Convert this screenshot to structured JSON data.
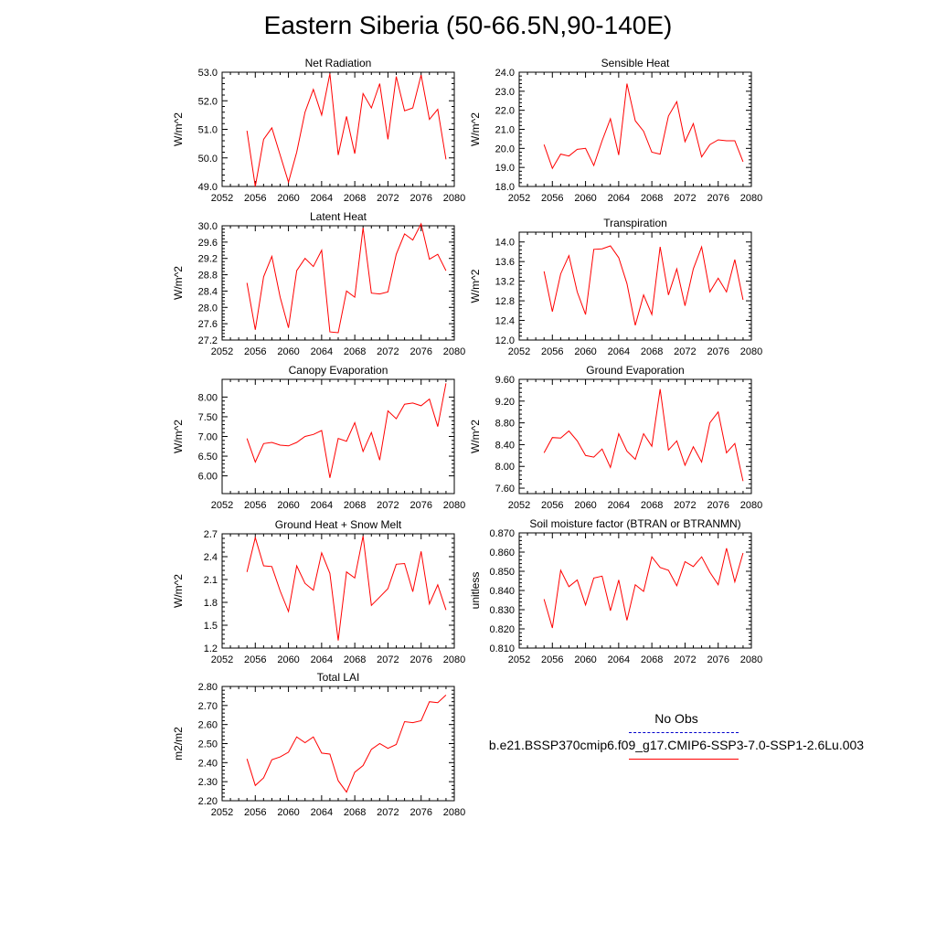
{
  "title": "Eastern Siberia (50-66.5N,90-140E)",
  "chart_data": [
    {
      "type": "line",
      "title": "Net Radiation",
      "ylabel": "W/m^2",
      "xlim": [
        2052,
        2080
      ],
      "ylim": [
        49.0,
        53.0
      ],
      "xticks": [
        "2052",
        "2056",
        "2060",
        "2064",
        "2068",
        "2072",
        "2076",
        "2080"
      ],
      "yticks": [
        "49.0",
        "50.0",
        "51.0",
        "52.0",
        "53.0"
      ],
      "color": "#ff0000",
      "x": [
        2055,
        2056,
        2057,
        2058,
        2059,
        2060,
        2061,
        2062,
        2063,
        2064,
        2065,
        2066,
        2067,
        2068,
        2069,
        2070,
        2071,
        2072,
        2073,
        2074,
        2075,
        2076,
        2077,
        2078,
        2079
      ],
      "y": [
        50.95,
        49.0,
        50.65,
        51.05,
        50.1,
        49.15,
        50.2,
        51.6,
        52.4,
        51.5,
        52.95,
        50.1,
        51.45,
        50.15,
        52.25,
        51.75,
        52.6,
        50.65,
        52.85,
        51.65,
        51.75,
        52.9,
        51.35,
        51.7,
        49.95
      ]
    },
    {
      "type": "line",
      "title": "Sensible Heat",
      "ylabel": "W/m^2",
      "xlim": [
        2052,
        2080
      ],
      "ylim": [
        18.0,
        24.0
      ],
      "xticks": [
        "2052",
        "2056",
        "2060",
        "2064",
        "2068",
        "2072",
        "2076",
        "2080"
      ],
      "yticks": [
        "18.0",
        "19.0",
        "20.0",
        "21.0",
        "22.0",
        "23.0",
        "24.0"
      ],
      "color": "#ff0000",
      "x": [
        2055,
        2056,
        2057,
        2058,
        2059,
        2060,
        2061,
        2062,
        2063,
        2064,
        2065,
        2066,
        2067,
        2068,
        2069,
        2070,
        2071,
        2072,
        2073,
        2074,
        2075,
        2076,
        2077,
        2078,
        2079
      ],
      "y": [
        20.2,
        18.95,
        19.7,
        19.6,
        19.95,
        20.0,
        19.1,
        20.4,
        21.55,
        19.65,
        23.4,
        21.45,
        20.9,
        19.8,
        19.7,
        21.7,
        22.45,
        20.35,
        21.3,
        19.55,
        20.2,
        20.45,
        20.4,
        20.4,
        19.3
      ]
    },
    {
      "type": "line",
      "title": "Latent Heat",
      "ylabel": "W/m^2",
      "xlim": [
        2052,
        2080
      ],
      "ylim": [
        27.2,
        30.0
      ],
      "xticks": [
        "2052",
        "2056",
        "2060",
        "2064",
        "2068",
        "2072",
        "2076",
        "2080"
      ],
      "yticks": [
        "27.2",
        "27.6",
        "28.0",
        "28.4",
        "28.8",
        "29.2",
        "29.6",
        "30.0"
      ],
      "color": "#ff0000",
      "x": [
        2055,
        2056,
        2057,
        2058,
        2059,
        2060,
        2061,
        2062,
        2063,
        2064,
        2065,
        2066,
        2067,
        2068,
        2069,
        2070,
        2071,
        2072,
        2073,
        2074,
        2075,
        2076,
        2077,
        2078,
        2079
      ],
      "y": [
        28.6,
        27.45,
        28.75,
        29.25,
        28.25,
        27.5,
        28.9,
        29.2,
        29.0,
        29.4,
        27.4,
        27.38,
        28.4,
        28.25,
        29.95,
        28.35,
        28.33,
        28.38,
        29.3,
        29.8,
        29.65,
        30.05,
        29.18,
        29.3,
        28.9
      ]
    },
    {
      "type": "line",
      "title": "Transpiration",
      "ylabel": "W/m^2",
      "xlim": [
        2052,
        2080
      ],
      "ylim": [
        12.0,
        14.2
      ],
      "xticks": [
        "2052",
        "2056",
        "2060",
        "2064",
        "2068",
        "2072",
        "2076",
        "2080"
      ],
      "yticks": [
        "12.0",
        "12.4",
        "12.8",
        "13.2",
        "13.6",
        "14.0"
      ],
      "color": "#ff0000",
      "x": [
        2055,
        2056,
        2057,
        2058,
        2059,
        2060,
        2061,
        2062,
        2063,
        2064,
        2065,
        2066,
        2067,
        2068,
        2069,
        2070,
        2071,
        2072,
        2073,
        2074,
        2075,
        2076,
        2077,
        2078,
        2079
      ],
      "y": [
        13.4,
        12.58,
        13.35,
        13.72,
        12.98,
        12.52,
        13.85,
        13.86,
        13.92,
        13.68,
        13.15,
        12.3,
        12.92,
        12.52,
        13.9,
        12.92,
        13.45,
        12.7,
        13.45,
        13.9,
        12.98,
        13.26,
        12.98,
        13.64,
        12.82
      ]
    },
    {
      "type": "line",
      "title": "Canopy Evaporation",
      "ylabel": "W/m^2",
      "xlim": [
        2052,
        2080
      ],
      "ylim": [
        5.55,
        8.45
      ],
      "xticks": [
        "2052",
        "2056",
        "2060",
        "2064",
        "2068",
        "2072",
        "2076",
        "2080"
      ],
      "yticks": [
        "6.00",
        "6.50",
        "7.00",
        "7.50",
        "8.00"
      ],
      "color": "#ff0000",
      "x": [
        2055,
        2056,
        2057,
        2058,
        2059,
        2060,
        2061,
        2062,
        2063,
        2064,
        2065,
        2066,
        2067,
        2068,
        2069,
        2070,
        2071,
        2072,
        2073,
        2074,
        2075,
        2076,
        2077,
        2078,
        2079
      ],
      "y": [
        6.95,
        6.35,
        6.82,
        6.85,
        6.78,
        6.76,
        6.85,
        7.0,
        7.05,
        7.15,
        5.95,
        6.95,
        6.88,
        7.35,
        6.62,
        7.1,
        6.4,
        7.65,
        7.45,
        7.82,
        7.85,
        7.78,
        7.95,
        7.25,
        8.35
      ]
    },
    {
      "type": "line",
      "title": "Ground Evaporation",
      "ylabel": "W/m^2",
      "xlim": [
        2052,
        2080
      ],
      "ylim": [
        7.5,
        9.6
      ],
      "xticks": [
        "2052",
        "2056",
        "2060",
        "2064",
        "2068",
        "2072",
        "2076",
        "2080"
      ],
      "yticks": [
        "7.60",
        "8.00",
        "8.40",
        "8.80",
        "9.20",
        "9.60"
      ],
      "color": "#ff0000",
      "x": [
        2055,
        2056,
        2057,
        2058,
        2059,
        2060,
        2061,
        2062,
        2063,
        2064,
        2065,
        2066,
        2067,
        2068,
        2069,
        2070,
        2071,
        2072,
        2073,
        2074,
        2075,
        2076,
        2077,
        2078,
        2079
      ],
      "y": [
        8.25,
        8.53,
        8.52,
        8.65,
        8.47,
        8.2,
        8.17,
        8.32,
        7.98,
        8.6,
        8.28,
        8.13,
        8.6,
        8.37,
        9.42,
        8.3,
        8.47,
        8.02,
        8.36,
        8.08,
        8.8,
        9.0,
        8.25,
        8.42,
        7.73
      ]
    },
    {
      "type": "line",
      "title": "Ground Heat + Snow Melt",
      "ylabel": "W/m^2",
      "xlim": [
        2052,
        2080
      ],
      "ylim": [
        1.2,
        2.7
      ],
      "xticks": [
        "2052",
        "2056",
        "2060",
        "2064",
        "2068",
        "2072",
        "2076",
        "2080"
      ],
      "yticks": [
        "1.2",
        "1.5",
        "1.8",
        "2.1",
        "2.4",
        "2.7"
      ],
      "color": "#ff0000",
      "x": [
        2055,
        2056,
        2057,
        2058,
        2059,
        2060,
        2061,
        2062,
        2063,
        2064,
        2065,
        2066,
        2067,
        2068,
        2069,
        2070,
        2071,
        2072,
        2073,
        2074,
        2075,
        2076,
        2077,
        2078,
        2079
      ],
      "y": [
        2.2,
        2.65,
        2.28,
        2.27,
        1.95,
        1.68,
        2.28,
        2.05,
        1.96,
        2.45,
        2.18,
        1.3,
        2.2,
        2.12,
        2.67,
        1.76,
        1.87,
        1.98,
        2.3,
        2.31,
        1.94,
        2.47,
        1.78,
        2.03,
        1.7
      ]
    },
    {
      "type": "line",
      "title": "Soil moisture factor (BTRAN or BTRANMN)",
      "ylabel": "unitless",
      "xlim": [
        2052,
        2080
      ],
      "ylim": [
        0.81,
        0.87
      ],
      "xticks": [
        "2052",
        "2056",
        "2060",
        "2064",
        "2068",
        "2072",
        "2076",
        "2080"
      ],
      "yticks": [
        "0.810",
        "0.820",
        "0.830",
        "0.840",
        "0.850",
        "0.860",
        "0.870"
      ],
      "color": "#ff0000",
      "x": [
        2055,
        2056,
        2057,
        2058,
        2059,
        2060,
        2061,
        2062,
        2063,
        2064,
        2065,
        2066,
        2067,
        2068,
        2069,
        2070,
        2071,
        2072,
        2073,
        2074,
        2075,
        2076,
        2077,
        2078,
        2079
      ],
      "y": [
        0.8355,
        0.8205,
        0.8505,
        0.842,
        0.8455,
        0.8325,
        0.8465,
        0.8475,
        0.8295,
        0.8455,
        0.8245,
        0.843,
        0.8395,
        0.8575,
        0.852,
        0.8505,
        0.8425,
        0.855,
        0.8525,
        0.8575,
        0.8495,
        0.843,
        0.862,
        0.8445,
        0.8595
      ]
    },
    {
      "type": "line",
      "title": "Total LAI",
      "ylabel": "m2/m2",
      "xlim": [
        2052,
        2080
      ],
      "ylim": [
        2.2,
        2.8
      ],
      "xticks": [
        "2052",
        "2056",
        "2060",
        "2064",
        "2068",
        "2072",
        "2076",
        "2080"
      ],
      "yticks": [
        "2.20",
        "2.30",
        "2.40",
        "2.50",
        "2.60",
        "2.70",
        "2.80"
      ],
      "color": "#ff0000",
      "x": [
        2055,
        2056,
        2057,
        2058,
        2059,
        2060,
        2061,
        2062,
        2063,
        2064,
        2065,
        2066,
        2067,
        2068,
        2069,
        2070,
        2071,
        2072,
        2073,
        2074,
        2075,
        2076,
        2077,
        2078,
        2079
      ],
      "y": [
        2.42,
        2.28,
        2.32,
        2.415,
        2.43,
        2.455,
        2.535,
        2.505,
        2.535,
        2.45,
        2.445,
        2.305,
        2.245,
        2.35,
        2.385,
        2.47,
        2.5,
        2.475,
        2.495,
        2.615,
        2.61,
        2.62,
        2.72,
        2.715,
        2.755
      ]
    }
  ],
  "legend": {
    "obs_label": "No Obs",
    "obs_color": "#0000cc",
    "case_label": "b.e21.BSSP370cmip6.f09_g17.CMIP6-SSP3-7.0-SSP1-2.6Lu.003",
    "case_color": "#ff0000"
  }
}
